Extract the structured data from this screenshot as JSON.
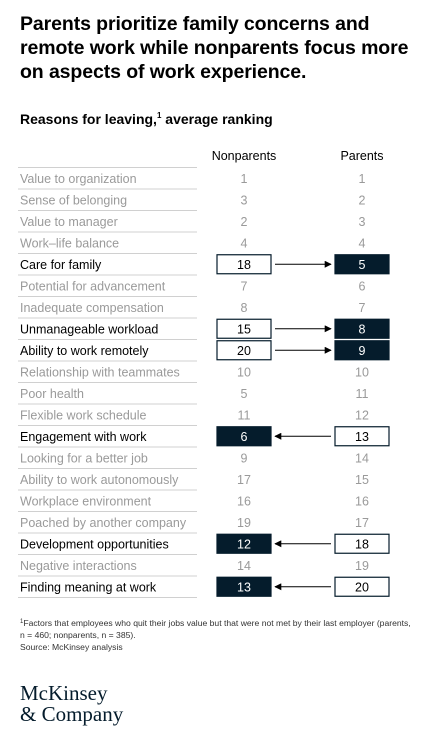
{
  "title": "Parents prioritize family concerns and remote work while nonparents focus more on aspects of work experience.",
  "chart_data": {
    "type": "table",
    "subtitle": "Reasons for leaving,",
    "subtitle_note_marker": "1",
    "subtitle_suffix": " average ranking",
    "columns": [
      "Nonparents",
      "Parents"
    ],
    "colors": {
      "dark": "#051c2c",
      "muted": "#9a9a9a",
      "rule": "#d0d0d0"
    },
    "rows": [
      {
        "label": "Value to organization",
        "nonparents": 1,
        "parents": 1,
        "highlight": "none"
      },
      {
        "label": "Sense of belonging",
        "nonparents": 3,
        "parents": 2,
        "highlight": "none"
      },
      {
        "label": "Value to manager",
        "nonparents": 2,
        "parents": 3,
        "highlight": "none"
      },
      {
        "label": "Work–life balance",
        "nonparents": 4,
        "parents": 4,
        "highlight": "none"
      },
      {
        "label": "Care for family",
        "nonparents": 18,
        "parents": 5,
        "highlight": "parents"
      },
      {
        "label": "Potential for advancement",
        "nonparents": 7,
        "parents": 6,
        "highlight": "none"
      },
      {
        "label": "Inadequate compensation",
        "nonparents": 8,
        "parents": 7,
        "highlight": "none"
      },
      {
        "label": "Unmanageable workload",
        "nonparents": 15,
        "parents": 8,
        "highlight": "parents"
      },
      {
        "label": "Ability to work remotely",
        "nonparents": 20,
        "parents": 9,
        "highlight": "parents"
      },
      {
        "label": "Relationship with teammates",
        "nonparents": 10,
        "parents": 10,
        "highlight": "none"
      },
      {
        "label": "Poor health",
        "nonparents": 5,
        "parents": 11,
        "highlight": "none"
      },
      {
        "label": "Flexible work schedule",
        "nonparents": 11,
        "parents": 12,
        "highlight": "none"
      },
      {
        "label": "Engagement with work",
        "nonparents": 6,
        "parents": 13,
        "highlight": "nonparents"
      },
      {
        "label": "Looking for a better job",
        "nonparents": 9,
        "parents": 14,
        "highlight": "none"
      },
      {
        "label": "Ability to work autonomously",
        "nonparents": 17,
        "parents": 15,
        "highlight": "none"
      },
      {
        "label": "Workplace environment",
        "nonparents": 16,
        "parents": 16,
        "highlight": "none"
      },
      {
        "label": "Poached by another company",
        "nonparents": 19,
        "parents": 17,
        "highlight": "none"
      },
      {
        "label": "Development opportunities",
        "nonparents": 12,
        "parents": 18,
        "highlight": "nonparents"
      },
      {
        "label": "Negative interactions",
        "nonparents": 14,
        "parents": 19,
        "highlight": "none"
      },
      {
        "label": "Finding meaning at work",
        "nonparents": 13,
        "parents": 20,
        "highlight": "nonparents"
      }
    ]
  },
  "footnote": {
    "marker": "1",
    "text": "Factors that employees who quit their jobs value but that were not met by their last employer (parents, n = 460; nonparents, n = 385).",
    "source": "Source: McKinsey analysis"
  },
  "logo": {
    "line1": "McKinsey",
    "line2": "& Company"
  }
}
